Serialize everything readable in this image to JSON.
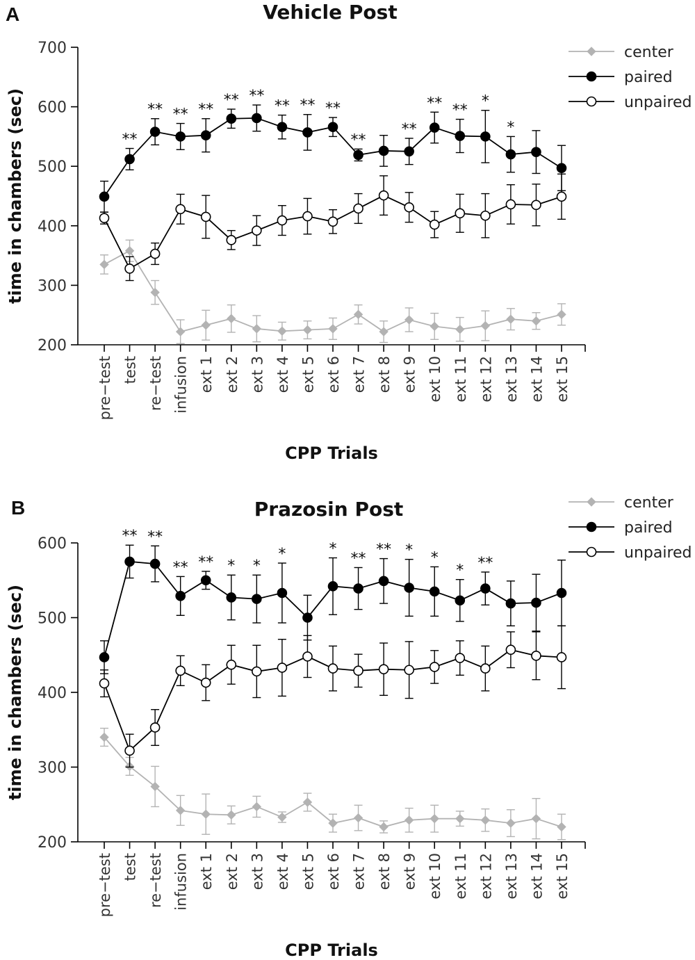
{
  "chart_data": [
    {
      "type": "line",
      "panel": "A",
      "title": "Vehicle Post",
      "xlabel": "CPP Trials",
      "ylabel": "time in chambers (sec)",
      "ylim": [
        200,
        700
      ],
      "yticks": [
        200,
        300,
        400,
        500,
        600,
        700
      ],
      "legend_position": "top-right",
      "categories": [
        "pre−test",
        "test",
        "re−test",
        "infusion",
        "ext 1",
        "ext 2",
        "ext 3",
        "ext 4",
        "ext 5",
        "ext 6",
        "ext 7",
        "ext 8",
        "ext 9",
        "ext 10",
        "ext 11",
        "ext 12",
        "ext 13",
        "ext 14",
        "ext 15"
      ],
      "series": [
        {
          "name": "center",
          "color": "#b3b3b3",
          "marker": "diamond",
          "values": [
            335,
            358,
            288,
            222,
            233,
            244,
            227,
            223,
            225,
            227,
            251,
            222,
            242,
            231,
            226,
            232,
            243,
            240,
            251
          ],
          "errors": [
            16,
            18,
            20,
            20,
            25,
            23,
            22,
            15,
            15,
            18,
            16,
            18,
            20,
            22,
            20,
            25,
            18,
            14,
            18
          ]
        },
        {
          "name": "paired",
          "color": "#000000",
          "marker": "filled-circle",
          "values": [
            449,
            512,
            558,
            550,
            552,
            580,
            581,
            566,
            557,
            566,
            519,
            526,
            525,
            565,
            551,
            550,
            520,
            524,
            497
          ],
          "errors": [
            26,
            18,
            22,
            22,
            28,
            16,
            22,
            20,
            30,
            16,
            10,
            26,
            22,
            26,
            28,
            44,
            30,
            36,
            38
          ]
        },
        {
          "name": "unpaired",
          "color": "#000000",
          "marker": "open-circle",
          "values": [
            413,
            328,
            353,
            428,
            415,
            376,
            392,
            409,
            416,
            407,
            429,
            451,
            431,
            402,
            421,
            417,
            436,
            435,
            449
          ],
          "errors": [
            10,
            20,
            18,
            25,
            36,
            16,
            25,
            25,
            30,
            20,
            25,
            33,
            25,
            22,
            32,
            37,
            33,
            35,
            38
          ]
        }
      ],
      "significance": [
        "",
        "**",
        "**",
        "**",
        "**",
        "**",
        "**",
        "**",
        "**",
        "**",
        "**",
        "",
        "**",
        "**",
        "**",
        "*",
        "*",
        "",
        ""
      ]
    },
    {
      "type": "line",
      "panel": "B",
      "title": "Prazosin Post",
      "xlabel": "CPP Trials",
      "ylabel": "time in chambers (sec)",
      "ylim": [
        200,
        600
      ],
      "yticks": [
        200,
        300,
        400,
        500,
        600
      ],
      "legend_position": "top-right",
      "categories": [
        "pre−test",
        "test",
        "re−test",
        "infusion",
        "ext 1",
        "ext 2",
        "ext 3",
        "ext 4",
        "ext 5",
        "ext 6",
        "ext 7",
        "ext 8",
        "ext 9",
        "ext 10",
        "ext 11",
        "ext 12",
        "ext 13",
        "ext 14",
        "ext 15"
      ],
      "series": [
        {
          "name": "center",
          "color": "#b3b3b3",
          "marker": "diamond",
          "values": [
            340,
            301,
            274,
            242,
            237,
            236,
            247,
            233,
            253,
            225,
            232,
            220,
            229,
            231,
            231,
            229,
            225,
            231,
            220
          ],
          "errors": [
            12,
            12,
            27,
            20,
            27,
            12,
            14,
            7,
            12,
            12,
            17,
            8,
            16,
            18,
            10,
            15,
            18,
            27,
            17
          ]
        },
        {
          "name": "paired",
          "color": "#000000",
          "marker": "filled-circle",
          "values": [
            447,
            575,
            572,
            529,
            550,
            527,
            525,
            533,
            500,
            542,
            539,
            549,
            540,
            535,
            523,
            539,
            519,
            520,
            533
          ],
          "errors": [
            22,
            22,
            24,
            26,
            12,
            30,
            32,
            40,
            30,
            38,
            28,
            30,
            38,
            33,
            28,
            22,
            30,
            38,
            44
          ]
        },
        {
          "name": "unpaired",
          "color": "#000000",
          "marker": "open-circle",
          "values": [
            412,
            322,
            353,
            429,
            413,
            437,
            428,
            433,
            448,
            432,
            429,
            431,
            430,
            434,
            446,
            432,
            457,
            449,
            447
          ],
          "errors": [
            18,
            22,
            24,
            20,
            24,
            26,
            35,
            38,
            28,
            30,
            22,
            35,
            38,
            22,
            23,
            30,
            24,
            32,
            42
          ]
        }
      ],
      "significance": [
        "",
        "**",
        "**",
        "**",
        "**",
        "*",
        "*",
        "*",
        "",
        "*",
        "**",
        "**",
        "*",
        "*",
        "*",
        "**",
        "",
        "",
        ""
      ]
    }
  ]
}
